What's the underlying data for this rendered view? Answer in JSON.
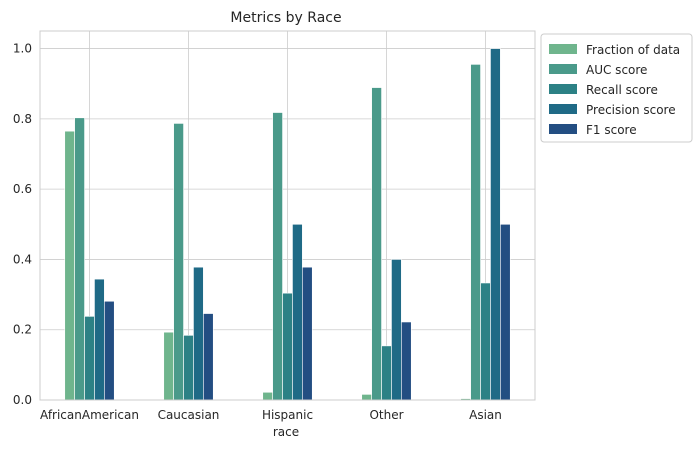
{
  "chart_data": {
    "type": "bar",
    "title": "Metrics by Race",
    "xlabel": "race",
    "ylabel": "",
    "ylim": [
      0,
      1.05
    ],
    "yticks": [
      0.0,
      0.2,
      0.4,
      0.6,
      0.8,
      1.0
    ],
    "grid": true,
    "legend_position": "outside-top-right",
    "categories": [
      "AfricanAmerican",
      "Caucasian",
      "Hispanic",
      "Other",
      "Asian"
    ],
    "series": [
      {
        "name": "Fraction of data",
        "color": "#6fb58d",
        "values": [
          0.765,
          0.193,
          0.022,
          0.016,
          0.004
        ]
      },
      {
        "name": "AUC score",
        "color": "#4a9a8a",
        "values": [
          0.803,
          0.787,
          0.818,
          0.889,
          0.955
        ]
      },
      {
        "name": "Recall score",
        "color": "#2c8185",
        "values": [
          0.238,
          0.184,
          0.304,
          0.154,
          0.333
        ]
      },
      {
        "name": "Precision score",
        "color": "#1f6a86",
        "values": [
          0.344,
          0.378,
          0.5,
          0.4,
          1.0
        ]
      },
      {
        "name": "F1 score",
        "color": "#234e82",
        "values": [
          0.281,
          0.246,
          0.378,
          0.222,
          0.5
        ]
      }
    ]
  }
}
